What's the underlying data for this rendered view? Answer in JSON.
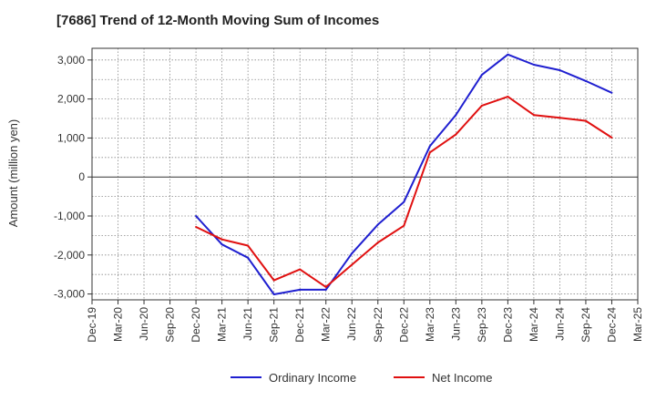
{
  "chart_data": {
    "type": "line",
    "title": "[7686]  Trend of 12-Month Moving Sum of Incomes",
    "xlabel": "",
    "ylabel": "Amount (million yen)",
    "categories": [
      "Dec-19",
      "Mar-20",
      "Jun-20",
      "Sep-20",
      "Dec-20",
      "Mar-21",
      "Jun-21",
      "Sep-21",
      "Dec-21",
      "Mar-22",
      "Jun-22",
      "Sep-22",
      "Dec-22",
      "Mar-23",
      "Jun-23",
      "Sep-23",
      "Dec-23",
      "Mar-24",
      "Jun-24",
      "Sep-24",
      "Dec-24",
      "Mar-25"
    ],
    "ylim": [
      -3150,
      3300
    ],
    "yticks": [
      3000,
      2000,
      1000,
      0,
      -1000,
      -2000,
      -3000
    ],
    "ytick_labels": [
      "3,000",
      "2,000",
      "1,000",
      "0",
      "-1,000",
      "-2,000",
      "-3,000"
    ],
    "grid": true,
    "legend_position": "bottom",
    "series": [
      {
        "name": "Ordinary Income",
        "color": "#1f1fd0",
        "values": [
          null,
          null,
          null,
          null,
          -1000,
          -1730,
          -2070,
          -3010,
          -2890,
          -2890,
          -1960,
          -1220,
          -640,
          790,
          1590,
          2620,
          3140,
          2880,
          2740,
          2460,
          2160,
          null
        ]
      },
      {
        "name": "Net Income",
        "color": "#e01010",
        "values": [
          null,
          null,
          null,
          null,
          -1280,
          -1600,
          -1760,
          -2650,
          -2370,
          -2820,
          -2250,
          -1680,
          -1250,
          630,
          1090,
          1830,
          2060,
          1590,
          1520,
          1440,
          1010,
          null
        ]
      }
    ]
  }
}
